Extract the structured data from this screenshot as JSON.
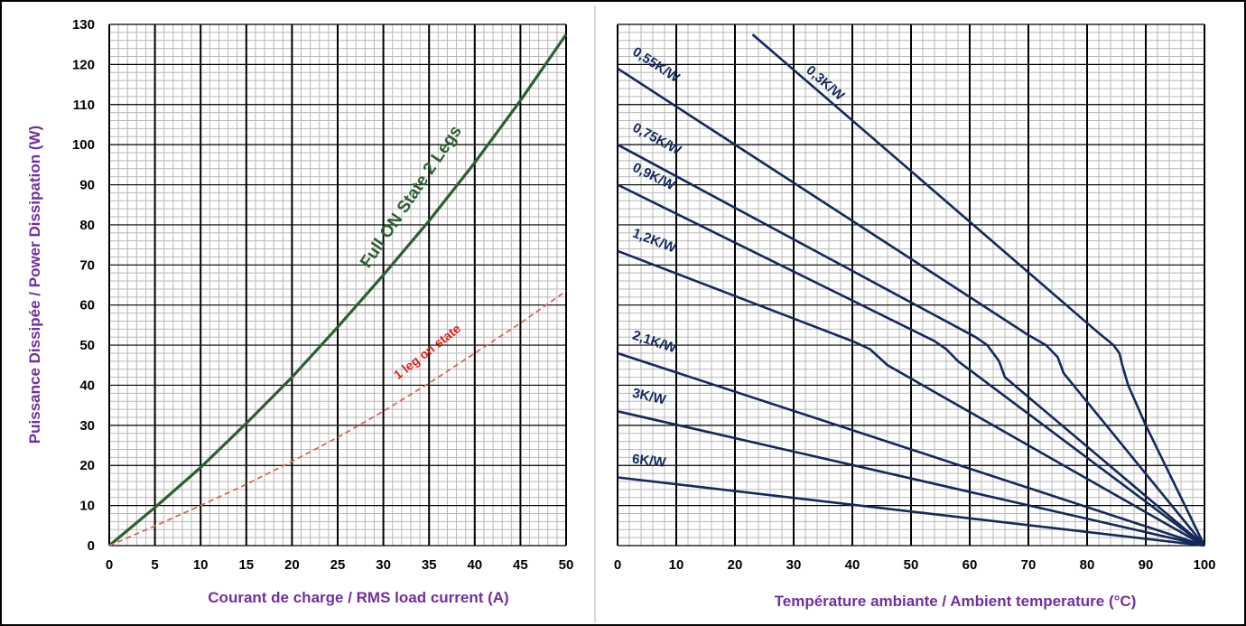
{
  "colors": {
    "grid_major": "#000000",
    "grid_minor": "#b8b8b8",
    "full_on_curve": "#2e5e34",
    "one_leg_curve": "#cf6a5e",
    "one_leg_label": "#e0201a",
    "heatsink_lines": "#14285a",
    "axis_labels": "#7030a0"
  },
  "chart_data": [
    {
      "type": "line",
      "title": "",
      "xlabel": "Courant de charge / RMS load current (A)",
      "ylabel": "Puissance Dissipée / Power Dissipation (W)",
      "xlim": [
        0,
        50
      ],
      "ylim": [
        0,
        130
      ],
      "x_ticks": [
        "0",
        "5",
        "10",
        "15",
        "20",
        "25",
        "30",
        "35",
        "40",
        "45",
        "50"
      ],
      "y_ticks": [
        "0",
        "10",
        "20",
        "30",
        "40",
        "50",
        "60",
        "70",
        "80",
        "90",
        "100",
        "110",
        "120",
        "130"
      ],
      "grid": true,
      "legend": "none",
      "series": [
        {
          "name": "Full ON State 2 Legs",
          "style": "solid",
          "x": [
            0,
            5,
            10,
            15,
            20,
            25,
            30,
            35,
            40,
            45,
            50
          ],
          "y": [
            0,
            9.5,
            19.5,
            30.5,
            42,
            54.5,
            67.5,
            81,
            95.5,
            111,
            127.5
          ]
        },
        {
          "name": "1 leg on state",
          "style": "dashed",
          "x": [
            0,
            5,
            10,
            15,
            20,
            25,
            30,
            35,
            40,
            45,
            50
          ],
          "y": [
            0,
            4.9,
            10,
            15.3,
            21,
            27,
            33.5,
            40.5,
            48,
            55.5,
            63.5
          ]
        }
      ]
    },
    {
      "type": "line",
      "title": "",
      "xlabel": "Température ambiante / Ambient temperature (°C)",
      "ylabel": "",
      "xlim": [
        0,
        100
      ],
      "ylim": [
        0,
        130
      ],
      "x_ticks": [
        "0",
        "10",
        "20",
        "30",
        "40",
        "50",
        "60",
        "70",
        "80",
        "90",
        "100"
      ],
      "grid": true,
      "legend": "none",
      "series": [
        {
          "name": "0,3K/W",
          "x": [
            23,
            82,
            84.5,
            85.5,
            86,
            87,
            90,
            100
          ],
          "y": [
            127.5,
            53,
            50,
            48,
            45,
            40,
            30,
            0
          ]
        },
        {
          "name": "0,55K/W",
          "x": [
            0,
            70,
            73,
            75,
            76,
            100
          ],
          "y": [
            119,
            52.5,
            50,
            47,
            43,
            0
          ]
        },
        {
          "name": "0,75K/W",
          "x": [
            0,
            61,
            63,
            65,
            66,
            100
          ],
          "y": [
            100,
            52,
            50,
            46,
            42,
            0
          ]
        },
        {
          "name": "0,9K/W",
          "x": [
            0,
            54,
            56,
            58,
            100
          ],
          "y": [
            90,
            51,
            49,
            46,
            0
          ]
        },
        {
          "name": "1,2K/W",
          "x": [
            0,
            40,
            43,
            46,
            100
          ],
          "y": [
            73.5,
            51,
            49,
            45,
            0
          ]
        },
        {
          "name": "2,1K/W",
          "x": [
            0,
            100
          ],
          "y": [
            48,
            0
          ]
        },
        {
          "name": "3K/W",
          "x": [
            0,
            100
          ],
          "y": [
            33.5,
            0
          ]
        },
        {
          "name": "6K/W",
          "x": [
            0,
            100
          ],
          "y": [
            17,
            0
          ]
        }
      ]
    }
  ]
}
